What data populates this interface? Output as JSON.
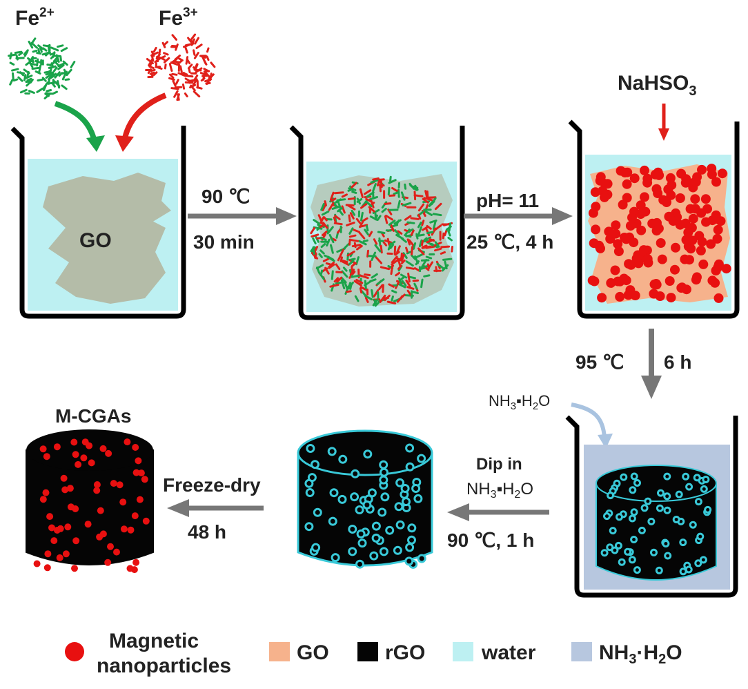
{
  "ions": {
    "fe2": {
      "base": "Fe",
      "charge": "2+"
    },
    "fe3": {
      "base": "Fe",
      "charge": "3+"
    }
  },
  "beaker1": {
    "label": "GO"
  },
  "step1": {
    "line1": "90 ℃",
    "line2": "30 min"
  },
  "step2": {
    "line1": "pH= 11",
    "line2": "25 ℃, 4 h"
  },
  "reagent": {
    "base": "NaHSO",
    "sub": "3"
  },
  "step3": {
    "left": "95 ℃",
    "right": "6 h"
  },
  "ammonia_label": {
    "a": "NH",
    "sub1": "3",
    "b": "▪H",
    "sub2": "2",
    "c": "O"
  },
  "step4": {
    "line1": "Dip in",
    "line2": {
      "a": "NH",
      "sub1": "3",
      "b": "▪H",
      "sub2": "2",
      "c": "O"
    },
    "line3": "90 ℃, 1 h"
  },
  "step5": {
    "line1": "Freeze-dry",
    "line2": "48 h"
  },
  "product": {
    "label": "M-CGAs"
  },
  "legend": {
    "nanoparticles_line1": "Magnetic",
    "nanoparticles_line2": "nanoparticles",
    "go": "GO",
    "rgo": "rGO",
    "water": "water",
    "nh3h2o": {
      "a": "NH",
      "sub1": "3",
      "b": "·H",
      "sub2": "2",
      "c": "O"
    }
  },
  "colors": {
    "water": "#bdf0f2",
    "go_gray": "#b4bca8",
    "go_orange": "#f6b28c",
    "fe2_green": "#1aa34a",
    "fe3_red": "#e0201a",
    "nanoparticle_red": "#e81010",
    "rgo_black": "#050505",
    "nh3_solution": "#b7c7df",
    "arrow_gray": "#777777",
    "cyan": "#39c9d8"
  }
}
